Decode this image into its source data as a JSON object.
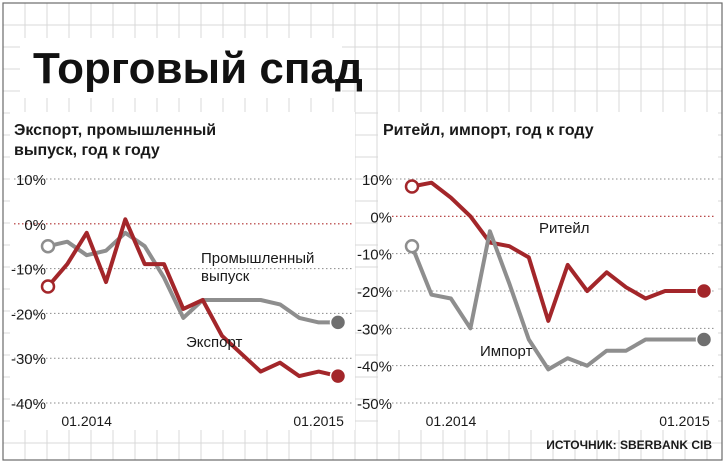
{
  "title": "Торговый спад",
  "source": "ИСТОЧНИК: SBERBANK CIB",
  "colors": {
    "red": "#a3262a",
    "gray": "#8e8e8e",
    "dark_gray": "#6f6f6f",
    "grid": "#d9d9d9",
    "zero_line": "#b03030",
    "text": "#1a1a1a"
  },
  "chart_data": [
    {
      "type": "line",
      "title": "Экспорт, промышленный выпуск, год к году",
      "y_ticks": [
        "10%",
        "0%",
        "-10%",
        "-20%",
        "-30%",
        "-40%"
      ],
      "ylim": [
        -40,
        10
      ],
      "x_ticks": [
        "01.2014",
        "01.2015"
      ],
      "grid": true,
      "series": [
        {
          "name": "Промышленный выпуск",
          "color": "gray",
          "x": [
            "11.2013",
            "12.2013",
            "01.2014",
            "02.2014",
            "03.2014",
            "04.2014",
            "05.2014",
            "06.2014",
            "07.2014",
            "08.2014",
            "09.2014",
            "10.2014",
            "11.2014",
            "12.2014",
            "01.2015",
            "02.2015"
          ],
          "values": [
            -5,
            -4,
            -7,
            -6,
            -2,
            -5,
            -12,
            -21,
            -17,
            -17,
            -17,
            -17,
            -18,
            -21,
            -22,
            -22
          ]
        },
        {
          "name": "Экспорт",
          "color": "red",
          "x": [
            "11.2013",
            "12.2013",
            "01.2014",
            "02.2014",
            "03.2014",
            "04.2014",
            "05.2014",
            "06.2014",
            "07.2014",
            "08.2014",
            "09.2014",
            "10.2014",
            "11.2014",
            "12.2014",
            "01.2015",
            "02.2015"
          ],
          "values": [
            -14,
            -9,
            -2,
            -13,
            1,
            -9,
            -9,
            -19,
            -17,
            -25,
            -29,
            -33,
            -31,
            -34,
            -33,
            -34
          ]
        }
      ]
    },
    {
      "type": "line",
      "title": "Ритейл, импорт, год к году",
      "y_ticks": [
        "10%",
        "0%",
        "-10%",
        "-20%",
        "-30%",
        "-40%",
        "-50%"
      ],
      "ylim": [
        -50,
        10
      ],
      "x_ticks": [
        "01.2014",
        "01.2015"
      ],
      "grid": true,
      "series": [
        {
          "name": "Ритейл",
          "color": "red",
          "x": [
            "11.2013",
            "12.2013",
            "01.2014",
            "02.2014",
            "03.2014",
            "04.2014",
            "05.2014",
            "06.2014",
            "07.2014",
            "08.2014",
            "09.2014",
            "10.2014",
            "11.2014",
            "12.2014",
            "01.2015",
            "02.2015"
          ],
          "values": [
            8,
            9,
            5,
            0,
            -7,
            -8,
            -11,
            -28,
            -13,
            -20,
            -15,
            -19,
            -22,
            -20,
            -20,
            -20
          ]
        },
        {
          "name": "Импорт",
          "color": "gray",
          "x": [
            "11.2013",
            "12.2013",
            "01.2014",
            "02.2014",
            "03.2014",
            "04.2014",
            "05.2014",
            "06.2014",
            "07.2014",
            "08.2014",
            "09.2014",
            "10.2014",
            "11.2014",
            "12.2014",
            "01.2015",
            "02.2015"
          ],
          "values": [
            -8,
            -21,
            -22,
            -30,
            -4,
            -18,
            -33,
            -41,
            -38,
            -40,
            -36,
            -36,
            -33,
            -33,
            -33,
            -33
          ]
        }
      ]
    }
  ]
}
